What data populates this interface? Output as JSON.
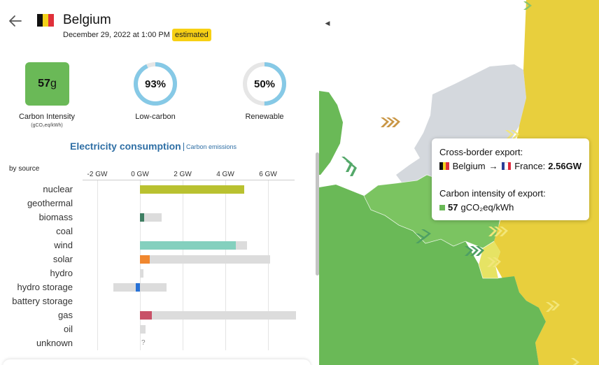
{
  "header": {
    "title": "Belgium",
    "date": "December 29, 2022 at 1:00 PM",
    "badge": "estimated",
    "flag_colors": [
      "#111111",
      "#f2d21a",
      "#e0303a"
    ]
  },
  "stats": {
    "carbon_intensity": {
      "value": "57",
      "unit": "g",
      "label": "Carbon Intensity",
      "sublabel": "(gCO₂eq/kWh)",
      "color": "#6ab957"
    },
    "low_carbon": {
      "value": "93%",
      "label": "Low-carbon",
      "fraction": 0.93
    },
    "renewable": {
      "value": "50%",
      "label": "Renewable",
      "fraction": 0.5
    }
  },
  "section": {
    "title": "Electricity consumption",
    "link": "Carbon emissions",
    "by_source": "by source"
  },
  "chart_data": {
    "type": "bar",
    "x_ticks": [
      "-2 GW",
      "0 GW",
      "2 GW",
      "4 GW",
      "6 GW"
    ],
    "x_tick_values": [
      -2,
      0,
      2,
      4,
      6
    ],
    "xlim": [
      -2.7,
      7.3
    ],
    "categories": [
      "nuclear",
      "geothermal",
      "biomass",
      "coal",
      "wind",
      "solar",
      "hydro",
      "hydro storage",
      "battery storage",
      "gas",
      "oil",
      "unknown"
    ],
    "series": [
      {
        "values": [
          4.9,
          null,
          0.2,
          null,
          4.5,
          0.45,
          null,
          -0.2,
          null,
          0.55,
          null,
          null
        ]
      },
      {
        "values": [
          4.9,
          null,
          1.0,
          null,
          5.0,
          6.1,
          0.15,
          1.25,
          null,
          7.3,
          0.25,
          null
        ]
      }
    ],
    "bar_colors": [
      "#b9c130",
      null,
      "#3f7f63",
      null,
      "#84d0be",
      "#f0872f",
      null,
      "#2872d6",
      null,
      "#c85168",
      null,
      null
    ],
    "capacity_color": "#dcdcdc",
    "unknown_label": "?"
  },
  "tooltip": {
    "title": "Cross-border export:",
    "from": "Belgium",
    "arrow": "→",
    "to": "France:",
    "amount": "2.56GW",
    "ci_title": "Carbon intensity of export:",
    "ci_value": "57",
    "ci_unit": "gCO₂eq/kWh",
    "france_flag": [
      "#2b3f97",
      "#ffffff",
      "#e1293d"
    ]
  },
  "icons": {
    "back": "arrow-left-icon",
    "collapse": "caret-left-icon"
  }
}
